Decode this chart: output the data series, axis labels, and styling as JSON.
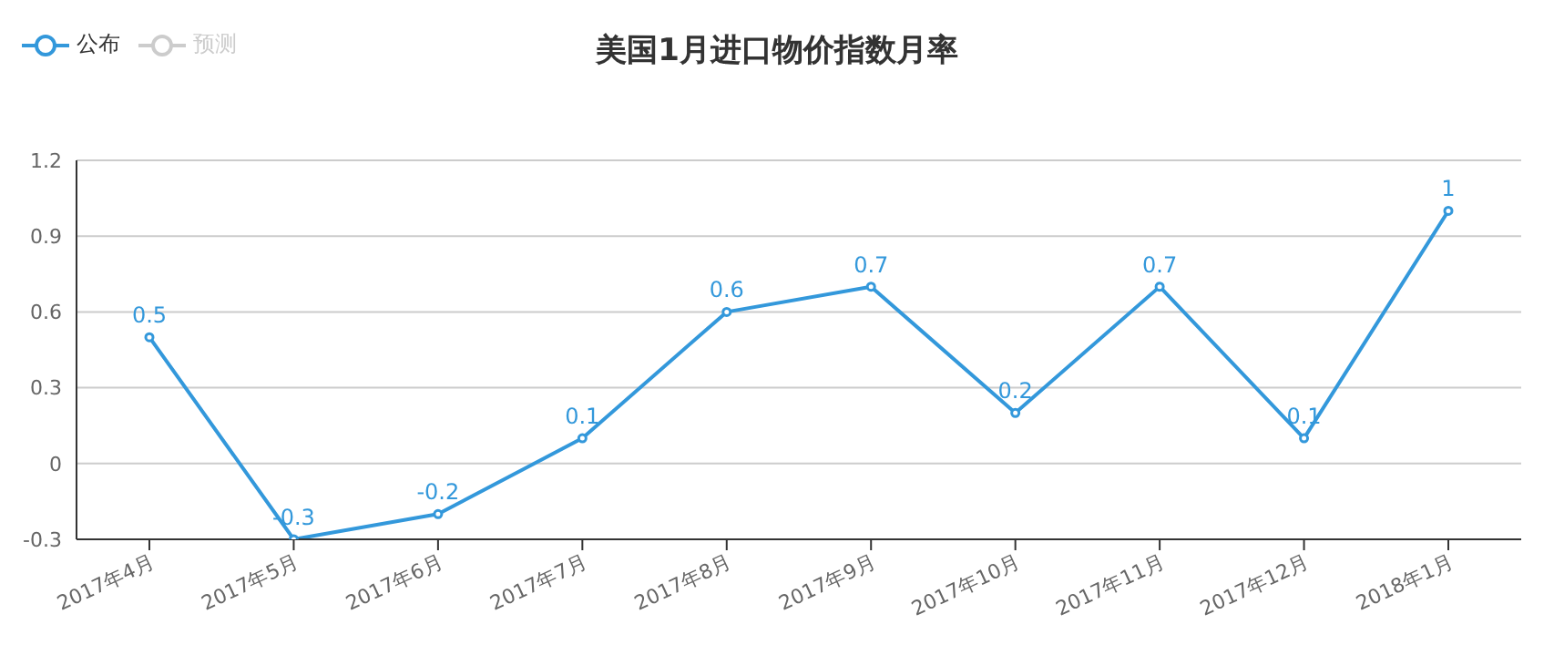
{
  "chart_data": {
    "type": "line",
    "title": "美国1月进口物价指数月率",
    "categories": [
      "2017年4月",
      "2017年5月",
      "2017年6月",
      "2017年7月",
      "2017年8月",
      "2017年9月",
      "2017年10月",
      "2017年11月",
      "2017年12月",
      "2018年1月"
    ],
    "series": [
      {
        "name": "公布",
        "color": "#3398db",
        "values": [
          0.5,
          -0.3,
          -0.2,
          0.1,
          0.6,
          0.7,
          0.2,
          0.7,
          0.1,
          1
        ]
      },
      {
        "name": "预测",
        "color": "#cccccc",
        "values": [
          null,
          null,
          null,
          null,
          null,
          null,
          null,
          null,
          null,
          null
        ]
      }
    ],
    "ylim": [
      -0.3,
      1.2
    ],
    "yticks": [
      -0.3,
      0,
      0.3,
      0.6,
      0.9,
      1.2
    ],
    "grid": "y",
    "legend": "top left",
    "marker": "circle",
    "line_style": "solid",
    "data_labels": true
  }
}
